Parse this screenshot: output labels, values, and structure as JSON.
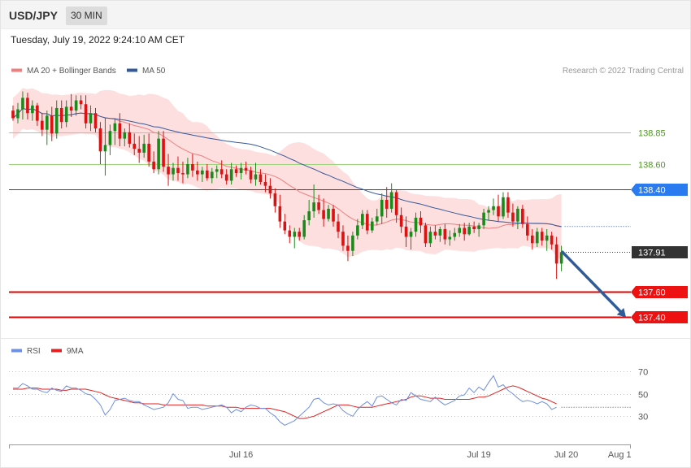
{
  "header": {
    "symbol": "USD/JPY",
    "timeframe": "30 MIN",
    "datetime": "Tuesday, July 19, 2022 9:24:10 AM CET"
  },
  "legend": {
    "ma20_bb": "MA 20 + Bollinger Bands",
    "ma50": "MA 50",
    "credit": "Research © 2022 Trading Central",
    "rsi": "RSI",
    "rsi_ma": "9MA"
  },
  "colors": {
    "up": "#1b8a1b",
    "down": "#dd1111",
    "bb_fill": "#fdd9d9",
    "ma20": "#ef7f7f",
    "ma50": "#35589a",
    "level_green": "#9bd47a",
    "level_blue": "#1f4e9c",
    "level_red": "#e30000",
    "current": "#333333",
    "arrow": "#2f5b9a",
    "rsi": "#6f8fe0",
    "rsi_ma": "#e22222"
  },
  "chart_data": [
    {
      "type": "candlestick",
      "title": "USD/JPY",
      "ylim": [
        137.23,
        139.25
      ],
      "price_labels": [
        {
          "value": 138.85,
          "label": "138.85",
          "style": "green"
        },
        {
          "value": 138.6,
          "label": "138.60",
          "style": "green"
        },
        {
          "value": 138.4,
          "label": "138.40",
          "style": "blue"
        },
        {
          "value": 137.91,
          "label": "137.91",
          "style": "current"
        },
        {
          "value": 137.6,
          "label": "137.60",
          "style": "red"
        },
        {
          "value": 137.4,
          "label": "137.40",
          "style": "red"
        }
      ],
      "x_tick_labels": [
        {
          "label": "Jul 16",
          "bar": 47
        },
        {
          "label": "Jul 19",
          "bar": 96
        },
        {
          "label": "Jul 20",
          "bar": 114
        },
        {
          "label": "Aug 1",
          "bar": 125
        }
      ],
      "forecast_arrow": {
        "from_price": 137.91,
        "to_price": 137.4
      },
      "ohlc": [
        [
          139.02,
          139.06,
          138.94,
          138.96
        ],
        [
          138.96,
          139.08,
          138.92,
          139.03
        ],
        [
          139.03,
          139.17,
          138.95,
          139.12
        ],
        [
          139.12,
          139.16,
          138.95,
          139.0
        ],
        [
          139.0,
          139.1,
          138.94,
          139.06
        ],
        [
          139.06,
          139.08,
          138.9,
          138.94
        ],
        [
          138.94,
          139.0,
          138.82,
          138.87
        ],
        [
          138.87,
          139.02,
          138.75,
          138.98
        ],
        [
          138.98,
          139.05,
          138.78,
          138.84
        ],
        [
          138.84,
          139.1,
          138.8,
          139.04
        ],
        [
          139.04,
          139.1,
          138.88,
          138.93
        ],
        [
          138.93,
          139.1,
          138.89,
          139.05
        ],
        [
          139.05,
          139.15,
          138.97,
          139.02
        ],
        [
          139.02,
          139.14,
          138.98,
          139.1
        ],
        [
          139.1,
          139.14,
          139.03,
          139.07
        ],
        [
          139.07,
          139.14,
          138.88,
          138.92
        ],
        [
          138.92,
          139.06,
          138.86,
          139.0
        ],
        [
          139.0,
          139.04,
          138.85,
          138.88
        ],
        [
          138.88,
          138.93,
          138.6,
          138.7
        ],
        [
          138.7,
          138.96,
          138.51,
          138.75
        ],
        [
          138.75,
          138.91,
          138.67,
          138.86
        ],
        [
          138.86,
          138.96,
          138.75,
          138.92
        ],
        [
          138.92,
          139.0,
          138.74,
          138.8
        ],
        [
          138.8,
          138.88,
          138.74,
          138.85
        ],
        [
          138.85,
          138.92,
          138.73,
          138.76
        ],
        [
          138.76,
          138.84,
          138.67,
          138.72
        ],
        [
          138.72,
          138.82,
          138.61,
          138.69
        ],
        [
          138.69,
          138.83,
          138.65,
          138.76
        ],
        [
          138.76,
          138.84,
          138.58,
          138.62
        ],
        [
          138.62,
          138.7,
          138.53,
          138.56
        ],
        [
          138.56,
          138.86,
          138.52,
          138.8
        ],
        [
          138.8,
          138.86,
          138.54,
          138.58
        ],
        [
          138.58,
          138.68,
          138.43,
          138.52
        ],
        [
          138.52,
          138.61,
          138.47,
          138.57
        ],
        [
          138.57,
          138.66,
          138.47,
          138.53
        ],
        [
          138.53,
          138.62,
          138.45,
          138.52
        ],
        [
          138.52,
          138.65,
          138.49,
          138.6
        ],
        [
          138.6,
          138.68,
          138.5,
          138.55
        ],
        [
          138.55,
          138.62,
          138.47,
          138.52
        ],
        [
          138.52,
          138.58,
          138.46,
          138.55
        ],
        [
          138.55,
          138.6,
          138.47,
          138.49
        ],
        [
          138.49,
          138.57,
          138.45,
          138.54
        ],
        [
          138.54,
          138.59,
          138.49,
          138.56
        ],
        [
          138.56,
          138.63,
          138.49,
          138.52
        ],
        [
          138.52,
          138.56,
          138.44,
          138.47
        ],
        [
          138.47,
          138.61,
          138.44,
          138.56
        ],
        [
          138.56,
          138.59,
          138.5,
          138.53
        ],
        [
          138.53,
          138.61,
          138.48,
          138.57
        ],
        [
          138.57,
          138.62,
          138.52,
          138.55
        ],
        [
          138.55,
          138.58,
          138.45,
          138.48
        ],
        [
          138.48,
          138.61,
          138.43,
          138.52
        ],
        [
          138.52,
          138.56,
          138.44,
          138.46
        ],
        [
          138.46,
          138.52,
          138.38,
          138.43
        ],
        [
          138.43,
          138.49,
          138.33,
          138.37
        ],
        [
          138.37,
          138.41,
          138.22,
          138.27
        ],
        [
          138.27,
          138.36,
          138.1,
          138.15
        ],
        [
          138.15,
          138.21,
          138.05,
          138.08
        ],
        [
          138.08,
          138.12,
          137.98,
          138.03
        ],
        [
          138.03,
          138.1,
          137.94,
          138.07
        ],
        [
          138.07,
          138.1,
          138.0,
          138.03
        ],
        [
          138.03,
          138.2,
          138.01,
          138.16
        ],
        [
          138.16,
          138.32,
          138.12,
          138.23
        ],
        [
          138.23,
          138.44,
          138.18,
          138.3
        ],
        [
          138.3,
          138.36,
          138.21,
          138.24
        ],
        [
          138.24,
          138.33,
          138.11,
          138.17
        ],
        [
          138.17,
          138.28,
          138.15,
          138.25
        ],
        [
          138.25,
          138.28,
          138.11,
          138.15
        ],
        [
          138.15,
          138.21,
          138.02,
          138.07
        ],
        [
          138.07,
          138.12,
          137.92,
          137.96
        ],
        [
          137.96,
          138.04,
          137.84,
          137.92
        ],
        [
          137.92,
          138.07,
          137.88,
          138.04
        ],
        [
          138.04,
          138.17,
          138.01,
          138.12
        ],
        [
          138.12,
          138.24,
          138.09,
          138.21
        ],
        [
          138.21,
          138.24,
          138.05,
          138.08
        ],
        [
          138.08,
          138.18,
          138.06,
          138.15
        ],
        [
          138.15,
          138.25,
          138.12,
          138.19
        ],
        [
          138.19,
          138.37,
          138.13,
          138.32
        ],
        [
          138.32,
          138.42,
          138.18,
          138.25
        ],
        [
          138.25,
          138.45,
          138.22,
          138.38
        ],
        [
          138.38,
          138.4,
          138.14,
          138.2
        ],
        [
          138.2,
          138.26,
          138.06,
          138.11
        ],
        [
          138.11,
          138.19,
          137.95,
          138.03
        ],
        [
          138.03,
          138.1,
          137.93,
          138.07
        ],
        [
          138.07,
          138.22,
          138.03,
          138.18
        ],
        [
          138.18,
          138.23,
          138.06,
          138.12
        ],
        [
          138.12,
          138.14,
          137.95,
          137.98
        ],
        [
          137.98,
          138.11,
          137.95,
          138.07
        ],
        [
          138.07,
          138.12,
          138.01,
          138.04
        ],
        [
          138.04,
          138.11,
          137.99,
          138.09
        ],
        [
          138.09,
          138.13,
          137.97,
          138.01
        ],
        [
          138.01,
          138.08,
          137.96,
          138.03
        ],
        [
          138.03,
          138.1,
          138.0,
          138.06
        ],
        [
          138.06,
          138.13,
          138.03,
          138.1
        ],
        [
          138.1,
          138.14,
          138.0,
          138.05
        ],
        [
          138.05,
          138.14,
          138.04,
          138.11
        ],
        [
          138.11,
          138.15,
          138.06,
          138.09
        ],
        [
          138.09,
          138.14,
          138.03,
          138.12
        ],
        [
          138.12,
          138.25,
          138.09,
          138.22
        ],
        [
          138.22,
          138.27,
          138.16,
          138.24
        ],
        [
          138.24,
          138.33,
          138.2,
          138.27
        ],
        [
          138.27,
          138.36,
          138.15,
          138.19
        ],
        [
          138.19,
          138.38,
          138.17,
          138.34
        ],
        [
          138.34,
          138.38,
          138.18,
          138.22
        ],
        [
          138.22,
          138.29,
          138.11,
          138.15
        ],
        [
          138.15,
          138.27,
          138.09,
          138.25
        ],
        [
          138.25,
          138.28,
          138.1,
          138.13
        ],
        [
          138.13,
          138.19,
          138.0,
          138.04
        ],
        [
          138.04,
          138.09,
          137.93,
          137.98
        ],
        [
          137.98,
          138.1,
          137.95,
          138.07
        ],
        [
          138.07,
          138.1,
          137.96,
          138.0
        ],
        [
          138.0,
          138.09,
          137.92,
          138.04
        ],
        [
          138.04,
          138.07,
          137.93,
          137.97
        ],
        [
          137.97,
          138.03,
          137.7,
          137.82
        ],
        [
          137.82,
          137.96,
          137.76,
          137.91
        ]
      ]
    },
    {
      "type": "line",
      "title": "RSI",
      "ylim": [
        10,
        80
      ],
      "y_ticks": [
        30,
        50,
        70
      ],
      "series": [
        {
          "name": "RSI",
          "values": [
            55,
            55,
            59,
            57,
            54,
            54,
            52,
            51,
            55,
            53,
            52,
            57,
            55,
            55,
            53,
            50,
            49,
            45,
            40,
            31,
            36,
            44,
            45,
            46,
            44,
            43,
            43,
            40,
            38,
            36,
            37,
            38,
            42,
            50,
            45,
            44,
            37,
            38,
            38,
            36,
            37,
            38,
            39,
            40,
            38,
            33,
            36,
            34,
            38,
            40,
            39,
            37,
            37,
            33,
            30,
            25,
            22,
            24,
            26,
            30,
            34,
            38,
            45,
            46,
            42,
            40,
            41,
            40,
            35,
            32,
            30,
            36,
            40,
            43,
            39,
            47,
            48,
            45,
            42,
            40,
            45,
            44,
            51,
            48,
            45,
            44,
            43,
            47,
            43,
            40,
            42,
            44,
            48,
            49,
            55,
            51,
            56,
            53,
            60,
            66,
            56,
            58,
            53,
            50,
            46,
            43,
            44,
            43,
            41,
            43,
            41,
            36,
            38
          ]
        },
        {
          "name": "9MA",
          "values": [
            54,
            54,
            54,
            55,
            55,
            55,
            54,
            54,
            54,
            54,
            53,
            53,
            54,
            54,
            54,
            54,
            53,
            52,
            51,
            49,
            47,
            46,
            45,
            44,
            43,
            42,
            42,
            41,
            41,
            41,
            41,
            40,
            40,
            40,
            40,
            40,
            40,
            40,
            40,
            40,
            39,
            39,
            39,
            39,
            38,
            38,
            38,
            37,
            37,
            37,
            37,
            37,
            37,
            37,
            36,
            35,
            34,
            32,
            30,
            28,
            28,
            29,
            30,
            32,
            34,
            36,
            38,
            40,
            40,
            40,
            39,
            38,
            38,
            38,
            38,
            39,
            40,
            41,
            42,
            43,
            44,
            45,
            47,
            48,
            48,
            47,
            46,
            46,
            46,
            45,
            45,
            45,
            45,
            45,
            45,
            46,
            47,
            47,
            48,
            50,
            52,
            54,
            56,
            57,
            56,
            54,
            52,
            50,
            48,
            46,
            45,
            43,
            41
          ]
        }
      ]
    }
  ]
}
